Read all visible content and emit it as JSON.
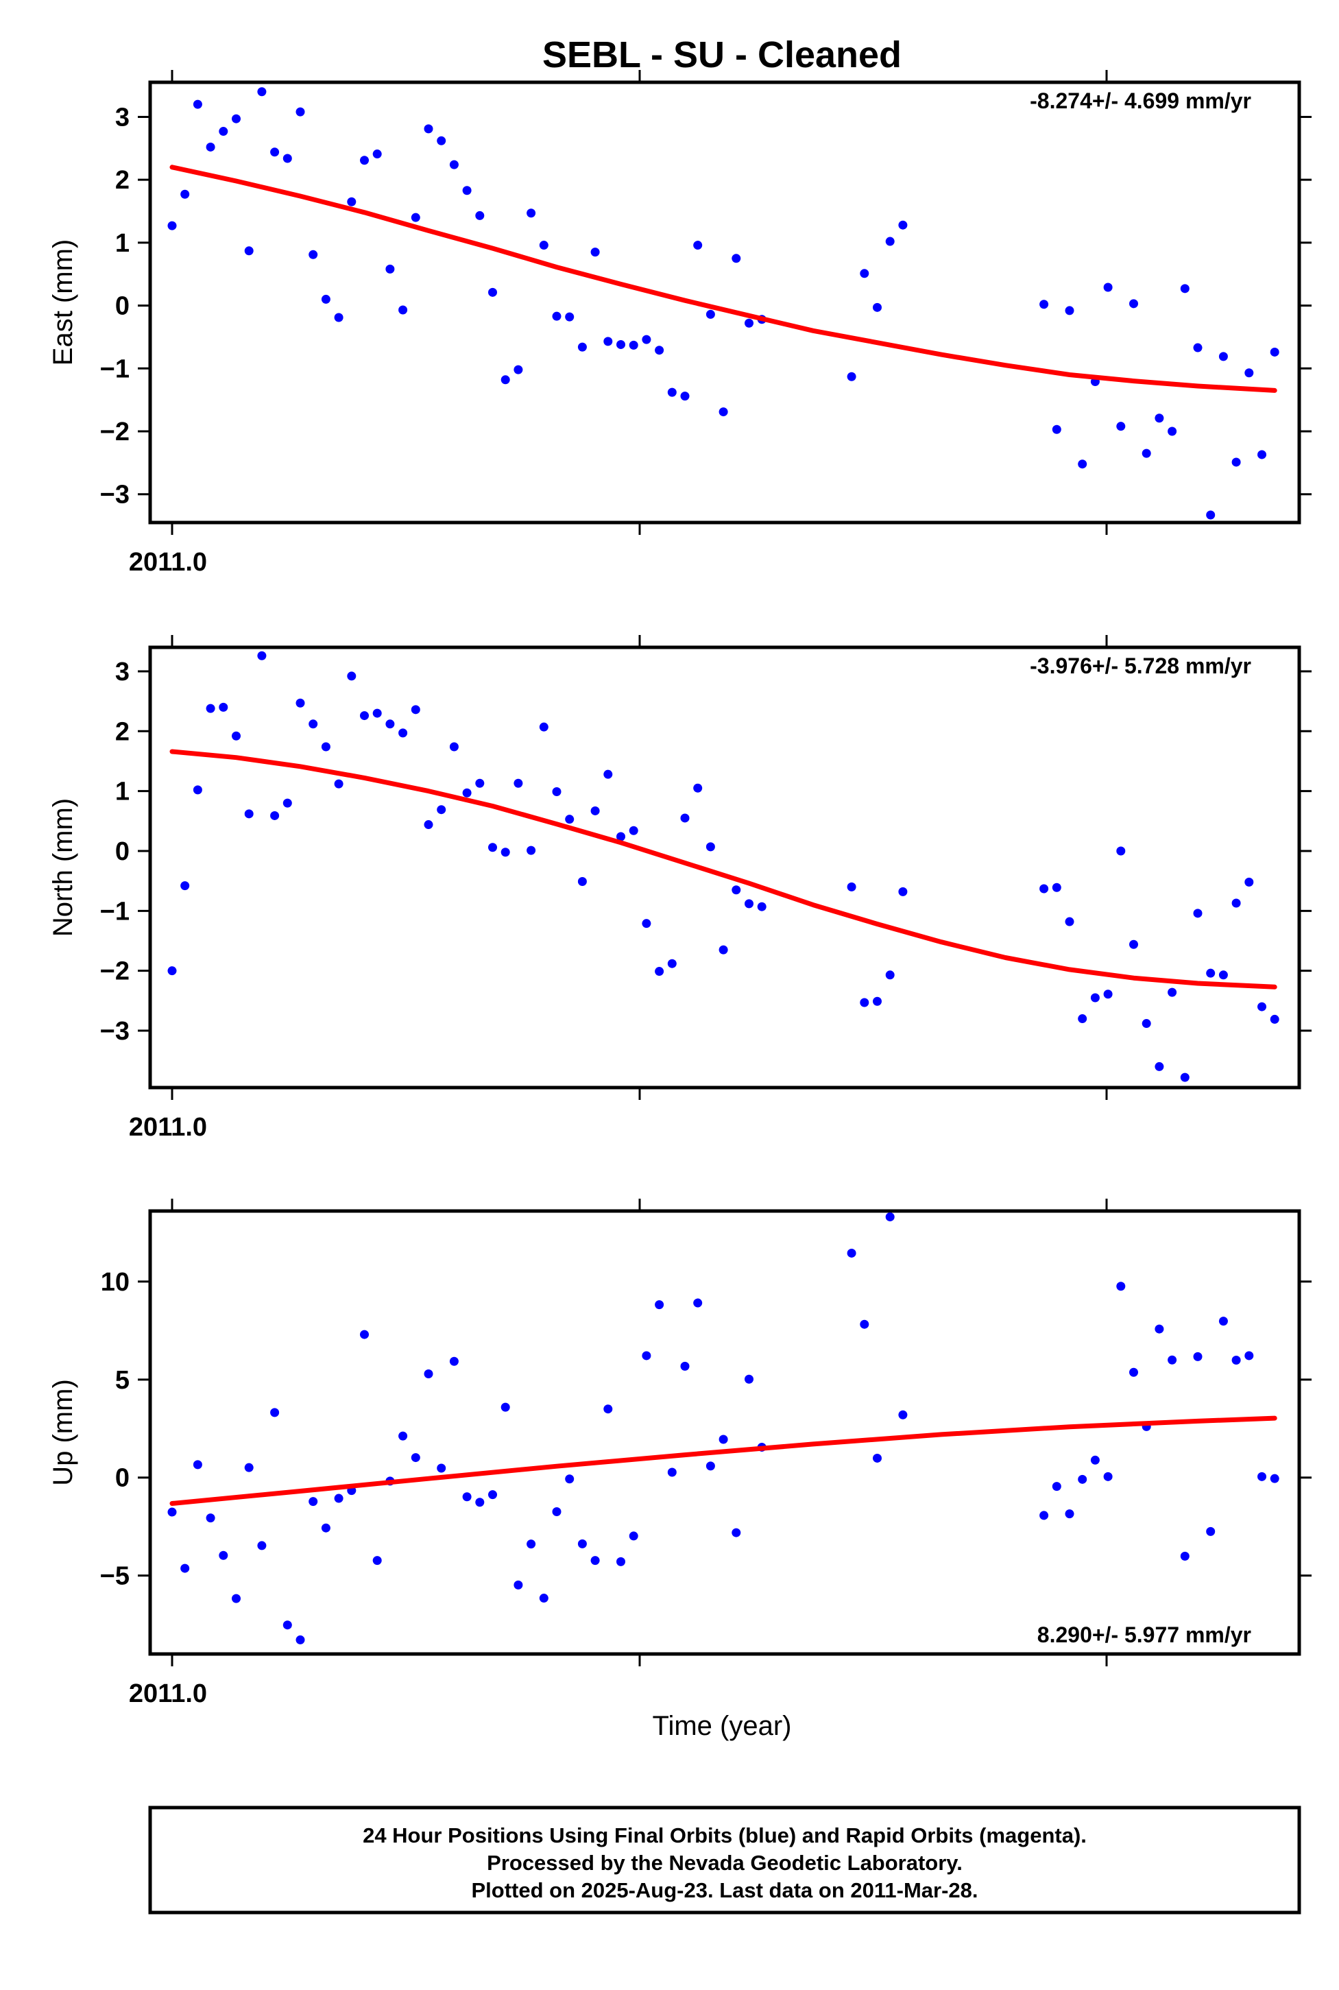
{
  "title": "SEBL  - SU - Cleaned",
  "xlabel": "Time (year)",
  "colors": {
    "points": "#0000ff",
    "fit": "#ff0000"
  },
  "footer": {
    "lines": [
      "24 Hour Positions Using Final Orbits (blue) and Rapid Orbits (magenta).",
      "Processed by the Nevada Geodetic Laboratory.",
      "Plotted on 2025-Aug-23. Last data on 2011-Mar-28."
    ]
  },
  "chart_data": [
    {
      "type": "scatter",
      "ylabel": "East (mm)",
      "rate": "-8.274+/- 4.699 mm/yr",
      "rate_position": "top-right",
      "x_tick_label": "2011.0",
      "ylim": [
        -3.45,
        3.55
      ],
      "yticks": [
        -3,
        -2,
        -1,
        0,
        1,
        2,
        3
      ],
      "series": [
        {
          "x": [
            0,
            1,
            2,
            3,
            4,
            5,
            6,
            7,
            8,
            9,
            10,
            11,
            12,
            13,
            14,
            15,
            16,
            17,
            18,
            19,
            20,
            21,
            22,
            23,
            24,
            25,
            26,
            27,
            28,
            29,
            30,
            31,
            32,
            33,
            34,
            35,
            36,
            37,
            38,
            39,
            40,
            41,
            42,
            43,
            44,
            45,
            46,
            53,
            54,
            55,
            56,
            57,
            68,
            69,
            70,
            71,
            72,
            73,
            74,
            75,
            76,
            77,
            78,
            79,
            80,
            81,
            82,
            83,
            84,
            85,
            86
          ],
          "y": [
            1.27,
            1.77,
            3.2,
            2.52,
            2.77,
            2.97,
            0.87,
            3.4,
            2.44,
            2.34,
            3.08,
            0.81,
            0.1,
            -0.19,
            1.65,
            2.31,
            2.41,
            0.58,
            -0.07,
            1.4,
            2.81,
            2.62,
            2.24,
            1.83,
            1.43,
            0.21,
            -1.18,
            -1.02,
            1.47,
            0.96,
            -0.17,
            -0.18,
            -0.66,
            0.85,
            -0.57,
            -0.62,
            -0.63,
            -0.54,
            -0.71,
            -1.38,
            -1.44,
            0.96,
            -0.14,
            -1.69,
            0.75,
            -0.28,
            -0.22,
            -1.13,
            0.51,
            -0.03,
            1.02,
            1.28,
            0.02,
            -1.97,
            -0.08,
            -2.52,
            -1.21,
            0.29,
            -1.92,
            0.03,
            -2.35,
            -1.79,
            -2.0,
            0.27,
            -0.67,
            -3.33,
            -0.81,
            -2.49,
            -1.07,
            -2.37,
            -0.74
          ]
        }
      ],
      "fit": {
        "x": [
          0,
          5,
          10,
          15,
          20,
          25,
          30,
          35,
          40,
          45,
          50,
          55,
          60,
          65,
          70,
          75,
          80,
          86
        ],
        "y": [
          2.2,
          1.98,
          1.74,
          1.48,
          1.19,
          0.91,
          0.61,
          0.34,
          0.08,
          -0.16,
          -0.4,
          -0.59,
          -0.78,
          -0.95,
          -1.1,
          -1.2,
          -1.28,
          -1.35
        ]
      }
    },
    {
      "type": "scatter",
      "ylabel": "North (mm)",
      "rate": "-3.976+/- 5.728 mm/yr",
      "rate_position": "top-right",
      "x_tick_label": "2011.0",
      "ylim": [
        -3.95,
        3.4
      ],
      "yticks": [
        -3,
        -2,
        -1,
        0,
        1,
        2,
        3
      ],
      "series": [
        {
          "x": [
            0,
            1,
            2,
            3,
            4,
            5,
            6,
            7,
            8,
            9,
            10,
            11,
            12,
            13,
            14,
            15,
            16,
            17,
            18,
            19,
            20,
            21,
            22,
            23,
            24,
            25,
            26,
            27,
            28,
            29,
            30,
            31,
            32,
            33,
            34,
            35,
            36,
            37,
            38,
            39,
            40,
            41,
            42,
            43,
            44,
            45,
            46,
            53,
            54,
            55,
            56,
            57,
            68,
            69,
            70,
            71,
            72,
            73,
            74,
            75,
            76,
            77,
            78,
            79,
            80,
            81,
            82,
            83,
            84,
            85,
            86
          ],
          "y": [
            -2.0,
            -0.58,
            1.02,
            2.38,
            2.4,
            1.92,
            0.62,
            3.26,
            0.59,
            0.8,
            2.47,
            2.12,
            1.74,
            1.12,
            2.92,
            2.26,
            2.3,
            2.12,
            1.97,
            2.36,
            0.44,
            0.69,
            1.74,
            0.97,
            1.13,
            0.06,
            -0.02,
            1.13,
            0.01,
            2.07,
            0.99,
            0.53,
            -0.51,
            0.67,
            1.28,
            0.24,
            0.34,
            -1.21,
            -2.01,
            -1.88,
            0.55,
            1.05,
            0.07,
            -1.65,
            -0.65,
            -0.88,
            -0.93,
            -0.6,
            -2.53,
            -2.51,
            -2.07,
            -0.68,
            -0.63,
            -0.61,
            -1.18,
            -2.8,
            -2.45,
            -2.39,
            0.0,
            -1.56,
            -2.88,
            -3.6,
            -2.36,
            -3.78,
            -1.04,
            -2.04,
            -2.07,
            -0.87,
            -0.52,
            -2.6,
            -2.81
          ]
        }
      ],
      "fit": {
        "x": [
          0,
          5,
          10,
          15,
          20,
          25,
          30,
          35,
          40,
          45,
          50,
          55,
          60,
          65,
          70,
          75,
          80,
          86
        ],
        "y": [
          1.66,
          1.56,
          1.41,
          1.22,
          1.0,
          0.75,
          0.45,
          0.14,
          -0.2,
          -0.54,
          -0.9,
          -1.22,
          -1.52,
          -1.78,
          -1.98,
          -2.12,
          -2.21,
          -2.27
        ]
      }
    },
    {
      "type": "scatter",
      "ylabel": "Up (mm)",
      "rate": "8.290+/- 5.977 mm/yr",
      "rate_position": "bottom-right",
      "x_tick_label": "2011.0",
      "ylim": [
        -9.0,
        13.6
      ],
      "yticks": [
        -5,
        0,
        5,
        10
      ],
      "series": [
        {
          "x": [
            0,
            1,
            2,
            3,
            4,
            5,
            6,
            7,
            8,
            9,
            10,
            11,
            12,
            13,
            14,
            15,
            16,
            17,
            18,
            19,
            20,
            21,
            22,
            23,
            24,
            25,
            26,
            27,
            28,
            29,
            30,
            31,
            32,
            33,
            34,
            35,
            36,
            37,
            38,
            39,
            40,
            41,
            42,
            43,
            44,
            45,
            46,
            53,
            54,
            55,
            56,
            57,
            68,
            69,
            70,
            71,
            72,
            73,
            74,
            75,
            76,
            77,
            78,
            79,
            80,
            81,
            82,
            83,
            84,
            85,
            86
          ],
          "y": [
            -1.76,
            -4.63,
            0.66,
            -2.06,
            -3.97,
            -6.17,
            0.51,
            -3.47,
            3.32,
            -7.52,
            -8.28,
            -1.22,
            -2.57,
            -1.06,
            -0.66,
            7.3,
            -4.23,
            -0.18,
            2.12,
            1.02,
            5.29,
            0.48,
            5.93,
            -0.98,
            -1.26,
            -0.87,
            3.59,
            -5.48,
            -3.39,
            -6.15,
            -1.74,
            -0.07,
            -3.38,
            -4.23,
            3.5,
            -4.29,
            -2.98,
            6.22,
            8.82,
            0.27,
            5.68,
            8.91,
            0.59,
            1.95,
            -2.81,
            5.02,
            1.55,
            11.45,
            7.82,
            0.99,
            13.3,
            3.2,
            -1.93,
            -0.45,
            -1.85,
            -0.09,
            0.89,
            0.05,
            9.76,
            5.37,
            2.6,
            7.58,
            6.0,
            -4.01,
            6.17,
            -2.75,
            7.98,
            5.99,
            6.22,
            0.05,
            -0.05
          ]
        }
      ],
      "fit": {
        "x": [
          0,
          10,
          20,
          30,
          40,
          50,
          60,
          70,
          80,
          86
        ],
        "y": [
          -1.32,
          -0.69,
          -0.05,
          0.58,
          1.16,
          1.71,
          2.2,
          2.59,
          2.88,
          3.03
        ]
      }
    }
  ]
}
